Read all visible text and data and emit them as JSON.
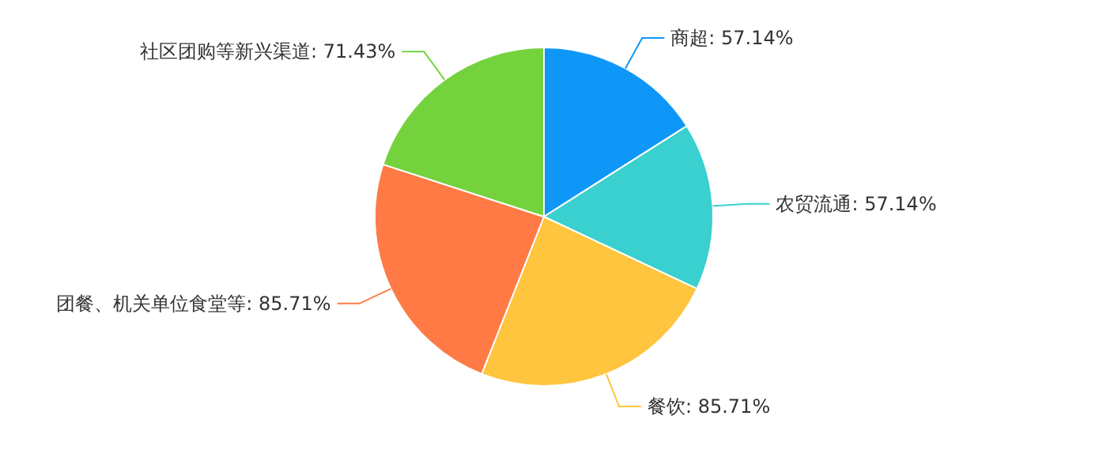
{
  "chart_data": {
    "type": "pie",
    "categories": [
      "商超",
      "农贸流通",
      "餐饮",
      "团餐、机关单位食堂等",
      "社区团购等新兴渠道"
    ],
    "values": [
      57.14,
      57.14,
      85.71,
      85.71,
      71.43
    ],
    "value_labels": [
      "57.14%",
      "57.14%",
      "85.71%",
      "85.71%",
      "71.43%"
    ],
    "colors": [
      "#0f97f7",
      "#3ad0cf",
      "#ffc53f",
      "#ff7a45",
      "#74d23d"
    ]
  }
}
